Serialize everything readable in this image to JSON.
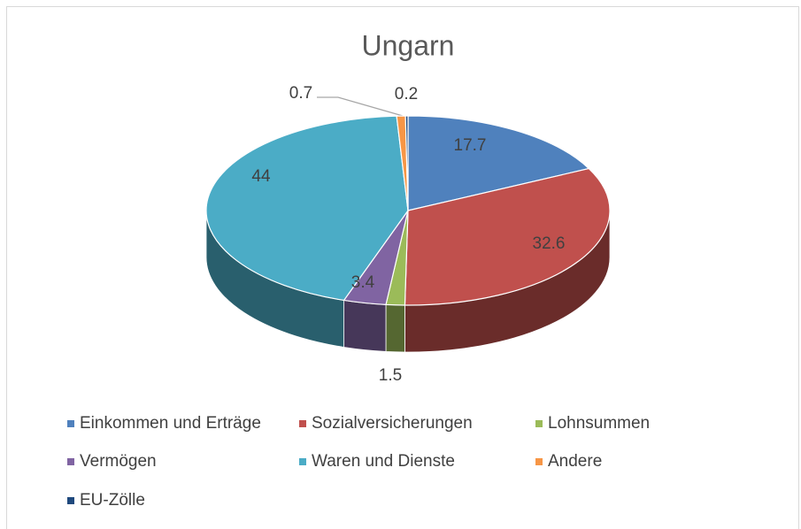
{
  "chart_data": {
    "type": "pie",
    "title": "Ungarn",
    "categories": [
      "Einkommen und Erträge",
      "Sozialversicherungen",
      "Lohnsummen",
      "Vermögen",
      "Waren und Dienste",
      "Andere",
      "EU-Zölle"
    ],
    "values": [
      17.7,
      32.6,
      1.5,
      3.4,
      44,
      0.7,
      0.2
    ],
    "colors": [
      "#4f81bd",
      "#c0504d",
      "#9bbb59",
      "#8064a2",
      "#4bacc6",
      "#f79646",
      "#1f497d"
    ],
    "legend": "bottom"
  }
}
